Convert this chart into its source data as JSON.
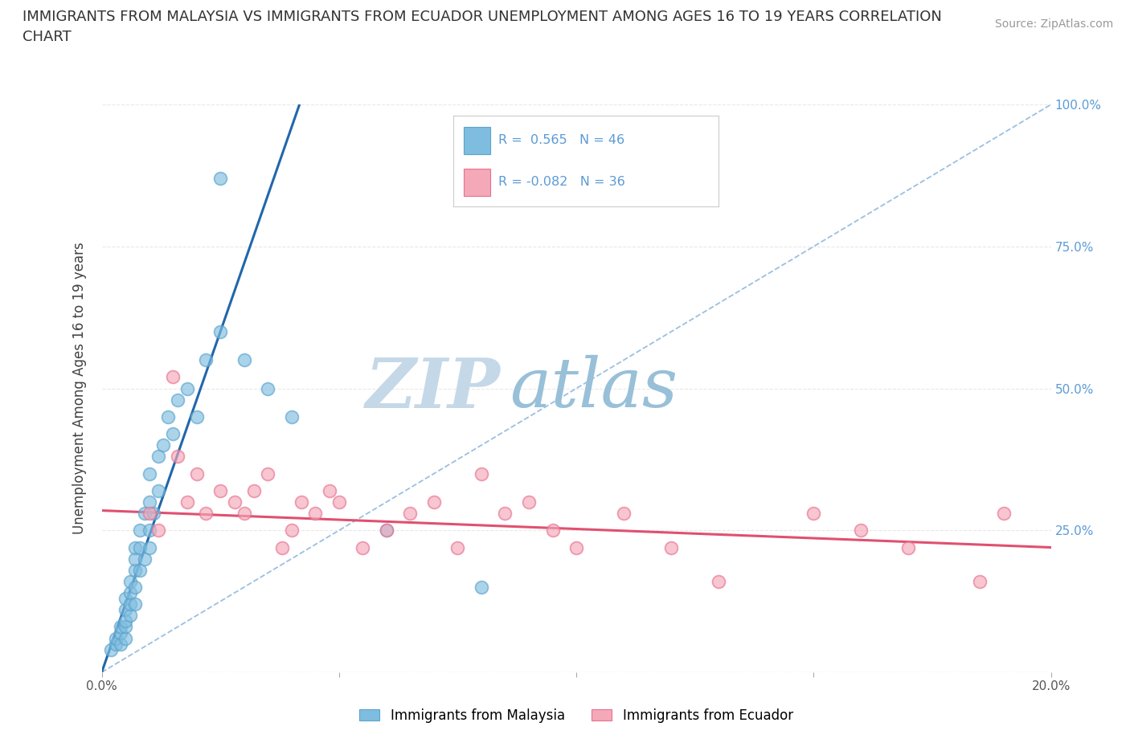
{
  "title_line1": "IMMIGRANTS FROM MALAYSIA VS IMMIGRANTS FROM ECUADOR UNEMPLOYMENT AMONG AGES 16 TO 19 YEARS CORRELATION",
  "title_line2": "CHART",
  "source": "Source: ZipAtlas.com",
  "ylabel": "Unemployment Among Ages 16 to 19 years",
  "xlim": [
    0.0,
    0.2
  ],
  "ylim": [
    0.0,
    1.0
  ],
  "malaysia_color": "#7fbde0",
  "malaysia_edge": "#5ba3cc",
  "ecuador_color": "#f4a8b8",
  "ecuador_edge": "#e87090",
  "trend_malaysia_color": "#2166ac",
  "trend_ecuador_color": "#e05070",
  "diag_color": "#90b8e0",
  "malaysia_R": 0.565,
  "malaysia_N": 46,
  "ecuador_R": -0.082,
  "ecuador_N": 36,
  "legend_label_malaysia": "Immigrants from Malaysia",
  "legend_label_ecuador": "Immigrants from Ecuador",
  "malaysia_x": [
    0.002,
    0.003,
    0.003,
    0.004,
    0.004,
    0.004,
    0.005,
    0.005,
    0.005,
    0.005,
    0.005,
    0.006,
    0.006,
    0.006,
    0.006,
    0.007,
    0.007,
    0.007,
    0.007,
    0.007,
    0.008,
    0.008,
    0.008,
    0.009,
    0.009,
    0.01,
    0.01,
    0.01,
    0.01,
    0.011,
    0.012,
    0.012,
    0.013,
    0.014,
    0.015,
    0.016,
    0.018,
    0.02,
    0.022,
    0.025,
    0.025,
    0.03,
    0.035,
    0.04,
    0.06,
    0.08
  ],
  "malaysia_y": [
    0.04,
    0.05,
    0.06,
    0.05,
    0.07,
    0.08,
    0.06,
    0.08,
    0.09,
    0.11,
    0.13,
    0.1,
    0.12,
    0.14,
    0.16,
    0.12,
    0.15,
    0.18,
    0.2,
    0.22,
    0.18,
    0.22,
    0.25,
    0.2,
    0.28,
    0.22,
    0.25,
    0.3,
    0.35,
    0.28,
    0.32,
    0.38,
    0.4,
    0.45,
    0.42,
    0.48,
    0.5,
    0.45,
    0.55,
    0.6,
    0.87,
    0.55,
    0.5,
    0.45,
    0.25,
    0.15
  ],
  "ecuador_x": [
    0.01,
    0.012,
    0.015,
    0.016,
    0.018,
    0.02,
    0.022,
    0.025,
    0.028,
    0.03,
    0.032,
    0.035,
    0.038,
    0.04,
    0.042,
    0.045,
    0.048,
    0.05,
    0.055,
    0.06,
    0.065,
    0.07,
    0.075,
    0.08,
    0.085,
    0.09,
    0.095,
    0.1,
    0.11,
    0.12,
    0.13,
    0.15,
    0.16,
    0.17,
    0.185,
    0.19
  ],
  "ecuador_y": [
    0.28,
    0.25,
    0.52,
    0.38,
    0.3,
    0.35,
    0.28,
    0.32,
    0.3,
    0.28,
    0.32,
    0.35,
    0.22,
    0.25,
    0.3,
    0.28,
    0.32,
    0.3,
    0.22,
    0.25,
    0.28,
    0.3,
    0.22,
    0.35,
    0.28,
    0.3,
    0.25,
    0.22,
    0.28,
    0.22,
    0.16,
    0.28,
    0.25,
    0.22,
    0.16,
    0.28
  ],
  "background_color": "#ffffff",
  "grid_color": "#e8e8e8",
  "title_fontsize": 13,
  "axis_fontsize": 12,
  "tick_fontsize": 11,
  "watermark_zip": "ZIP",
  "watermark_atlas": "atlas",
  "watermark_color_zip": "#c5d8e8",
  "watermark_color_atlas": "#98c0d8",
  "right_tick_color": "#5b9bd5"
}
